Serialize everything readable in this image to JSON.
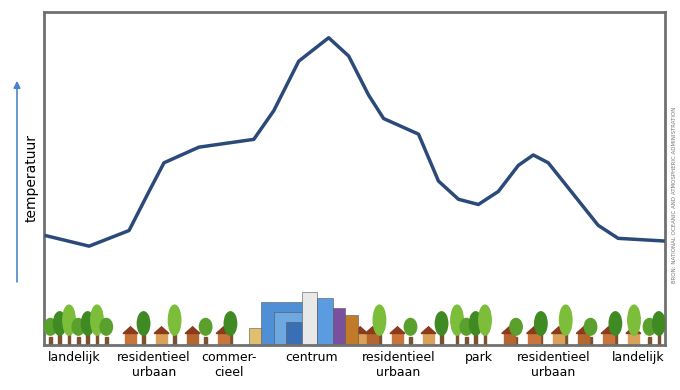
{
  "chart_data": {
    "type": "line",
    "y_label": "temperatuur",
    "source": "BRON: NATIONAL OCEANIC AND ATMOSPHERIC ADMINISTRATION",
    "x": [
      2,
      45,
      85,
      105,
      120,
      155,
      210,
      230,
      255,
      285,
      305,
      325,
      340,
      375,
      395,
      415,
      435,
      455,
      475,
      490,
      505,
      530,
      555,
      575,
      620
    ],
    "values": [
      21,
      17,
      23,
      38,
      49,
      55,
      58,
      69,
      88,
      97,
      90,
      75,
      66,
      60,
      42,
      35,
      33,
      38,
      48,
      52,
      49,
      37,
      25,
      20,
      19
    ],
    "color": "#2b4a7a",
    "xlim": [
      0,
      622
    ],
    "ylim": [
      -21,
      107
    ],
    "xticks": [
      {
        "value": 30,
        "label": "landelijk"
      },
      {
        "value": 110,
        "label": "residentieel\nurbaan"
      },
      {
        "value": 185,
        "label": "commer-\ncieel"
      },
      {
        "value": 268,
        "label": "centrum"
      },
      {
        "value": 355,
        "label": "residentieel\nurbaan"
      },
      {
        "value": 435,
        "label": "park"
      },
      {
        "value": 510,
        "label": "residentieel\nurbaan"
      },
      {
        "value": 595,
        "label": "landelijk"
      }
    ],
    "tick_labels": "x"
  }
}
